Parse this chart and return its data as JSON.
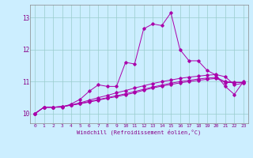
{
  "xlabel": "Windchill (Refroidissement éolien,°C)",
  "xlim": [
    -0.5,
    23.5
  ],
  "ylim": [
    9.7,
    13.4
  ],
  "yticks": [
    10,
    11,
    12,
    13
  ],
  "xticks": [
    0,
    1,
    2,
    3,
    4,
    5,
    6,
    7,
    8,
    9,
    10,
    11,
    12,
    13,
    14,
    15,
    16,
    17,
    18,
    19,
    20,
    21,
    22,
    23
  ],
  "bg_color": "#cceeff",
  "line_color": "#aa00aa",
  "grid_color": "#99cccc",
  "lines": [
    [
      10.0,
      10.2,
      10.2,
      10.2,
      10.3,
      10.45,
      10.7,
      10.9,
      10.85,
      10.85,
      11.6,
      11.55,
      12.65,
      12.8,
      12.75,
      13.15,
      12.0,
      11.65,
      11.65,
      11.35,
      11.2,
      10.85,
      10.6,
      11.0
    ],
    [
      10.0,
      10.2,
      10.2,
      10.22,
      10.27,
      10.34,
      10.42,
      10.5,
      10.57,
      10.65,
      10.72,
      10.8,
      10.87,
      10.94,
      11.0,
      11.05,
      11.1,
      11.14,
      11.17,
      11.2,
      11.22,
      11.15,
      10.9,
      10.95
    ],
    [
      10.0,
      10.2,
      10.2,
      10.22,
      10.27,
      10.32,
      10.38,
      10.44,
      10.5,
      10.56,
      10.62,
      10.69,
      10.76,
      10.83,
      10.89,
      10.95,
      11.0,
      11.04,
      11.08,
      11.11,
      11.13,
      11.0,
      10.98,
      10.98
    ],
    [
      10.0,
      10.2,
      10.2,
      10.22,
      10.26,
      10.31,
      10.36,
      10.42,
      10.48,
      10.53,
      10.59,
      10.65,
      10.73,
      10.8,
      10.86,
      10.91,
      10.96,
      11.0,
      11.04,
      11.07,
      11.1,
      10.97,
      10.97,
      10.97
    ]
  ]
}
